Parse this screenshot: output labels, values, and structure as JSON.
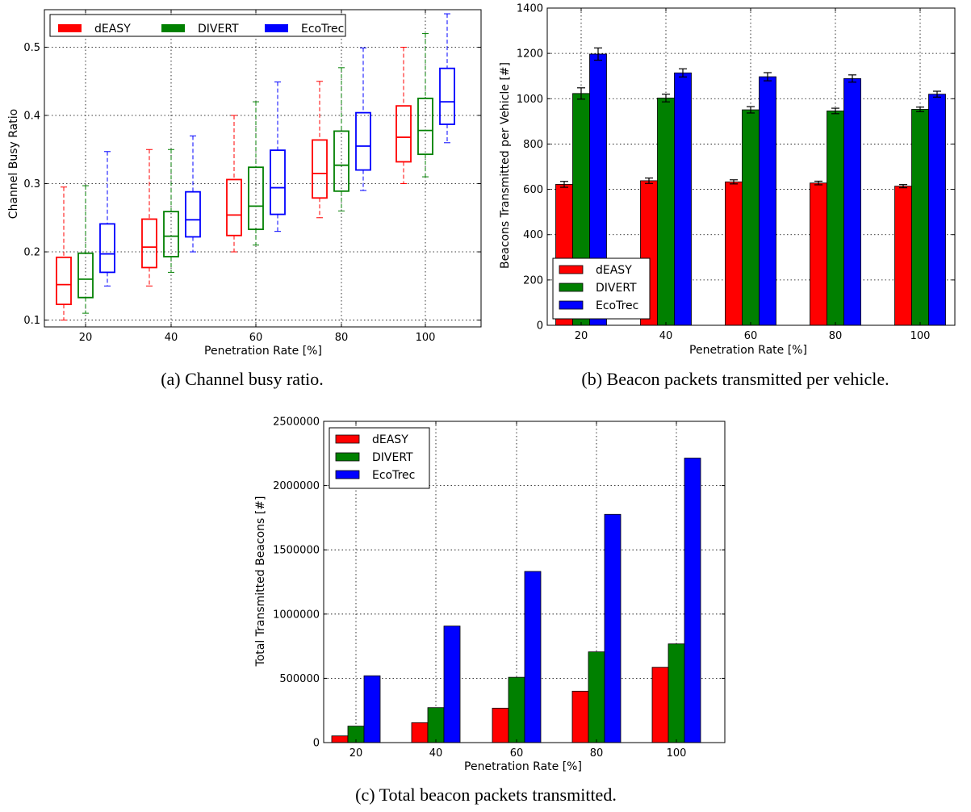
{
  "colors": {
    "dEASY": "#ff0000",
    "DIVERT": "#008000",
    "EcoTrec": "#0000ff"
  },
  "chart_data": [
    {
      "type": "box",
      "caption": "(a) Channel busy ratio.",
      "xlabel": "Penetration Rate [%]",
      "ylabel": "Channel Busy Ratio",
      "ylim": [
        0.09,
        0.555
      ],
      "yticks": [
        "0.1",
        "0.2",
        "0.3",
        "0.4",
        "0.5"
      ],
      "categories": [
        "20",
        "40",
        "60",
        "80",
        "100"
      ],
      "legend": "top-left",
      "grid": true,
      "series": [
        {
          "name": "dEASY",
          "boxes": [
            {
              "whislo": 0.1,
              "q1": 0.123,
              "med": 0.152,
              "q3": 0.192,
              "whishi": 0.295
            },
            {
              "whislo": 0.15,
              "q1": 0.177,
              "med": 0.207,
              "q3": 0.248,
              "whishi": 0.35
            },
            {
              "whislo": 0.2,
              "q1": 0.224,
              "med": 0.254,
              "q3": 0.306,
              "whishi": 0.4
            },
            {
              "whislo": 0.25,
              "q1": 0.279,
              "med": 0.315,
              "q3": 0.364,
              "whishi": 0.45
            },
            {
              "whislo": 0.3,
              "q1": 0.332,
              "med": 0.368,
              "q3": 0.414,
              "whishi": 0.5
            }
          ]
        },
        {
          "name": "DIVERT",
          "boxes": [
            {
              "whislo": 0.11,
              "q1": 0.133,
              "med": 0.16,
              "q3": 0.198,
              "whishi": 0.297
            },
            {
              "whislo": 0.17,
              "q1": 0.193,
              "med": 0.223,
              "q3": 0.259,
              "whishi": 0.35
            },
            {
              "whislo": 0.21,
              "q1": 0.233,
              "med": 0.267,
              "q3": 0.324,
              "whishi": 0.42
            },
            {
              "whislo": 0.26,
              "q1": 0.289,
              "med": 0.327,
              "q3": 0.377,
              "whishi": 0.47
            },
            {
              "whislo": 0.31,
              "q1": 0.343,
              "med": 0.378,
              "q3": 0.425,
              "whishi": 0.52
            }
          ]
        },
        {
          "name": "EcoTrec",
          "boxes": [
            {
              "whislo": 0.15,
              "q1": 0.17,
              "med": 0.197,
              "q3": 0.241,
              "whishi": 0.347
            },
            {
              "whislo": 0.2,
              "q1": 0.222,
              "med": 0.247,
              "q3": 0.288,
              "whishi": 0.37
            },
            {
              "whislo": 0.23,
              "q1": 0.255,
              "med": 0.294,
              "q3": 0.349,
              "whishi": 0.449
            },
            {
              "whislo": 0.29,
              "q1": 0.32,
              "med": 0.355,
              "q3": 0.404,
              "whishi": 0.499
            },
            {
              "whislo": 0.36,
              "q1": 0.387,
              "med": 0.42,
              "q3": 0.469,
              "whishi": 0.549
            }
          ]
        }
      ]
    },
    {
      "type": "bar",
      "caption": "(b) Beacon packets transmitted per vehicle.",
      "xlabel": "Penetration Rate [%]",
      "ylabel": "Beacons Transmitted per Vehicle [#]",
      "ylim": [
        0,
        1400
      ],
      "yticks": [
        "0",
        "200",
        "400",
        "600",
        "800",
        "1000",
        "1200",
        "1400"
      ],
      "categories": [
        "20",
        "40",
        "60",
        "80",
        "100"
      ],
      "legend": "bottom-left",
      "grid": true,
      "series": [
        {
          "name": "dEASY",
          "values": [
            622,
            638,
            633,
            628,
            614
          ],
          "errors": [
            13,
            12,
            9,
            8,
            7
          ]
        },
        {
          "name": "DIVERT",
          "values": [
            1023,
            1003,
            951,
            946,
            953
          ],
          "errors": [
            25,
            17,
            14,
            12,
            10
          ]
        },
        {
          "name": "EcoTrec",
          "values": [
            1197,
            1114,
            1097,
            1089,
            1020
          ],
          "errors": [
            27,
            18,
            18,
            16,
            13
          ]
        }
      ]
    },
    {
      "type": "bar",
      "caption": "(c) Total beacon packets transmitted.",
      "xlabel": "Penetration Rate [%]",
      "ylabel": "Total Transmitted Beacons [#]",
      "ylim": [
        0,
        2500000
      ],
      "yticks": [
        "0",
        "500000",
        "1000000",
        "1500000",
        "2000000",
        "2500000"
      ],
      "categories": [
        "20",
        "40",
        "60",
        "80",
        "100"
      ],
      "legend": "top-left",
      "grid": true,
      "series": [
        {
          "name": "dEASY",
          "values": [
            52000,
            155000,
            268000,
            400000,
            586000
          ]
        },
        {
          "name": "DIVERT",
          "values": [
            128000,
            272000,
            508000,
            706000,
            768000
          ]
        },
        {
          "name": "EcoTrec",
          "values": [
            520000,
            907000,
            1332000,
            1776000,
            2214000
          ]
        }
      ]
    }
  ]
}
